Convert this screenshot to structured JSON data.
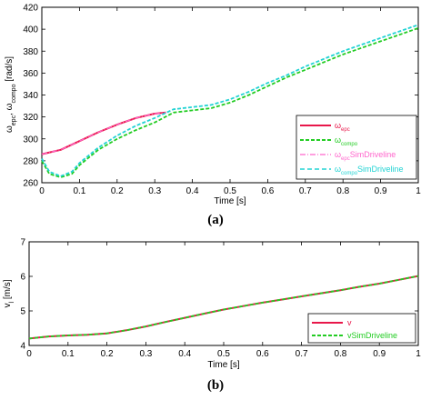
{
  "chart_data": [
    {
      "type": "line",
      "panel_label": "(a)",
      "xlabel": "Time [s]",
      "ylabel": "ω_epc, ω_compo [rad/s]",
      "xlim": [
        0,
        1
      ],
      "ylim": [
        260,
        420
      ],
      "xticks": [
        0,
        0.1,
        0.2,
        0.3,
        0.4,
        0.5,
        0.6,
        0.7,
        0.8,
        0.9,
        1
      ],
      "xtick_labels": [
        "0",
        "0.1",
        "0.2",
        "0.3",
        "0.4",
        "0.5",
        "0.6",
        "0.7",
        "0.8",
        "0.9",
        "1"
      ],
      "yticks": [
        260,
        280,
        300,
        320,
        340,
        360,
        380,
        400,
        420
      ],
      "yticks_labels": [
        "260",
        "280",
        "300",
        "320",
        "340",
        "360",
        "380",
        "400",
        "420"
      ],
      "grid": false,
      "legend_position": "lower-right",
      "series": [
        {
          "name": "ω_epc",
          "color": "#e8174a",
          "style": "solid",
          "x": [
            0,
            0.05,
            0.1,
            0.15,
            0.2,
            0.25,
            0.3,
            0.33
          ],
          "y": [
            286,
            290,
            298,
            306,
            313,
            319,
            323,
            324
          ]
        },
        {
          "name": "ω_compo",
          "color": "#22cc22",
          "style": "dashed",
          "x": [
            0,
            0.02,
            0.05,
            0.08,
            0.1,
            0.15,
            0.2,
            0.25,
            0.3,
            0.35,
            0.4,
            0.45,
            0.5,
            0.55,
            0.6,
            0.65,
            0.7,
            0.75,
            0.8,
            0.85,
            0.9,
            0.95,
            1
          ],
          "y": [
            280,
            268,
            265,
            268,
            276,
            290,
            300,
            308,
            315,
            324,
            326,
            328,
            333,
            340,
            348,
            356,
            363,
            370,
            377,
            383,
            389,
            395,
            401
          ]
        },
        {
          "name": "ω_epc SimDriveline",
          "color": "#ff66cc",
          "style": "dashdot",
          "x": [
            0,
            0.05,
            0.1,
            0.15,
            0.2,
            0.25,
            0.3,
            0.33
          ],
          "y": [
            286,
            290,
            298,
            306,
            313,
            319,
            323,
            324
          ]
        },
        {
          "name": "ω_compo SimDriveline",
          "color": "#22d3d3",
          "style": "dashed",
          "x": [
            0,
            0.02,
            0.05,
            0.08,
            0.1,
            0.15,
            0.2,
            0.25,
            0.3,
            0.35,
            0.4,
            0.45,
            0.5,
            0.55,
            0.6,
            0.65,
            0.7,
            0.75,
            0.8,
            0.85,
            0.9,
            0.95,
            1
          ],
          "y": [
            282,
            270,
            266,
            270,
            278,
            292,
            303,
            312,
            319,
            327,
            329,
            331,
            336,
            343,
            351,
            358,
            366,
            373,
            380,
            386,
            392,
            398,
            404
          ]
        }
      ]
    },
    {
      "type": "line",
      "panel_label": "(b)",
      "xlabel": "Time [s]",
      "ylabel": "v_l [m/s]",
      "xlim": [
        0,
        1
      ],
      "ylim": [
        4,
        7
      ],
      "xticks": [
        0,
        0.1,
        0.2,
        0.3,
        0.4,
        0.5,
        0.6,
        0.7,
        0.8,
        0.9,
        1
      ],
      "xtick_labels": [
        "0",
        "0.1",
        "0.2",
        "0.3",
        "0.4",
        "0.5",
        "0.6",
        "0.7",
        "0.8",
        "0.9",
        "1"
      ],
      "yticks": [
        4,
        5,
        6,
        7
      ],
      "yticks_labels": [
        "4",
        "5",
        "6",
        "7"
      ],
      "grid": false,
      "legend_position": "lower-right",
      "series": [
        {
          "name": "v",
          "color": "#e8174a",
          "style": "solid",
          "x": [
            0,
            0.05,
            0.1,
            0.15,
            0.2,
            0.25,
            0.3,
            0.35,
            0.4,
            0.45,
            0.5,
            0.55,
            0.6,
            0.65,
            0.7,
            0.75,
            0.8,
            0.85,
            0.9,
            0.95,
            1
          ],
          "y": [
            4.2,
            4.26,
            4.29,
            4.31,
            4.35,
            4.44,
            4.55,
            4.68,
            4.8,
            4.92,
            5.04,
            5.14,
            5.24,
            5.33,
            5.42,
            5.51,
            5.6,
            5.7,
            5.79,
            5.9,
            6.01
          ]
        },
        {
          "name": "vSimDriveline",
          "color": "#22cc22",
          "style": "dashed",
          "x": [
            0,
            0.05,
            0.1,
            0.15,
            0.2,
            0.25,
            0.3,
            0.35,
            0.4,
            0.45,
            0.5,
            0.55,
            0.6,
            0.65,
            0.7,
            0.75,
            0.8,
            0.85,
            0.9,
            0.95,
            1
          ],
          "y": [
            4.2,
            4.26,
            4.29,
            4.31,
            4.35,
            4.44,
            4.55,
            4.68,
            4.8,
            4.92,
            5.04,
            5.14,
            5.24,
            5.33,
            5.42,
            5.51,
            5.6,
            5.7,
            5.79,
            5.9,
            6.01
          ]
        }
      ]
    }
  ]
}
